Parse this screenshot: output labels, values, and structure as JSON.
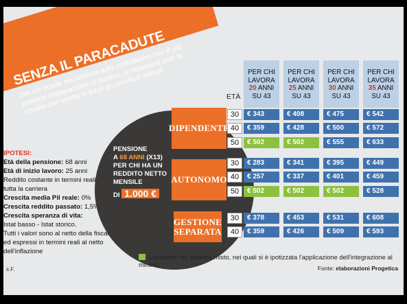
{
  "title": "SENZA IL PARACADUTE",
  "subtitle": "Per chi ricade nel sistema tutto contributivo non è più previsto l'integrazione al minimo, si incasserà solo la rendita che spetta in base ai contributi versati",
  "hypotheses": {
    "header": "IPOTESI:",
    "lines": [
      {
        "label": "Età della pensione:",
        "value": " 68 anni"
      },
      {
        "label": "Età di inizio lavoro:",
        "value": " 25 anni"
      },
      {
        "label": "",
        "value": "Reddito costante in termini reali per tutta la carriera"
      },
      {
        "label": "Crescita media Pil reale:",
        "value": " 0%"
      },
      {
        "label": "Crescita reddito passato:",
        "value": " 1,5%"
      },
      {
        "label": "Crescita speranza di vita:",
        "value": ""
      },
      {
        "label": "",
        "value": "Istat basso - Istat storico."
      },
      {
        "label": "",
        "value": "Tutti i valori sono al netto della fiscalità ed espressi in termini reali al netto dell'inflazione"
      }
    ]
  },
  "pension_box": {
    "line1": "PENSIONE",
    "line2_pre": "A ",
    "line2_hl": "68 ANNI",
    "line2_post": " (X13)",
    "line3": "PER CHI HA UN REDDITO NETTO MENSILE",
    "amount_pre": "DI ",
    "amount": "1.000 €"
  },
  "table": {
    "eta_header": "ETÀ",
    "columns": [
      {
        "pre": "PER CHI LAVORA",
        "years": "20",
        "post": "ANNI SU 43"
      },
      {
        "pre": "PER CHI LAVORA",
        "years": "25",
        "post": "ANNI SU 43"
      },
      {
        "pre": "PER CHI LAVORA",
        "years": "30",
        "post": "ANNI SU 43"
      },
      {
        "pre": "PER CHI LAVORA",
        "years": "35",
        "post": "ANNI SU 43"
      }
    ],
    "groups": [
      {
        "name": "DIPENDENTE",
        "rows": [
          {
            "age": "30",
            "values": [
              "€ 343",
              "€ 408",
              "€ 475",
              "€ 542"
            ],
            "misto": [
              false,
              false,
              false,
              false
            ]
          },
          {
            "age": "40",
            "values": [
              "€ 359",
              "€ 428",
              "€ 500",
              "€ 572"
            ],
            "misto": [
              false,
              false,
              false,
              false
            ]
          },
          {
            "age": "50",
            "values": [
              "€ 502",
              "€ 502",
              "€ 555",
              "€ 633"
            ],
            "misto": [
              true,
              true,
              false,
              false
            ]
          }
        ]
      },
      {
        "name": "AUTONOMO",
        "rows": [
          {
            "age": "30",
            "values": [
              "€ 283",
              "€ 341",
              "€ 395",
              "€ 449"
            ],
            "misto": [
              false,
              false,
              false,
              false
            ]
          },
          {
            "age": "40",
            "values": [
              "€ 257",
              "€ 337",
              "€ 401",
              "€ 459"
            ],
            "misto": [
              false,
              false,
              false,
              false
            ]
          },
          {
            "age": "50",
            "values": [
              "€ 502",
              "€ 502",
              "€ 502",
              "€ 528"
            ],
            "misto": [
              true,
              true,
              true,
              false
            ]
          }
        ]
      },
      {
        "name": "GESTIONE SEPARATA",
        "rows": [
          {
            "age": "30",
            "values": [
              "€ 378",
              "€ 453",
              "€ 531",
              "€ 608"
            ],
            "misto": [
              false,
              false,
              false,
              false
            ]
          },
          {
            "age": "40",
            "values": [
              "€ 359",
              "€ 426",
              "€ 509",
              "€ 593"
            ],
            "misto": [
              false,
              false,
              false,
              false
            ]
          }
        ]
      }
    ]
  },
  "legend": "Lavoratori nel sistema misto, nei quali si è ipotizzata l'applicazione dell'integrazione al minimo",
  "source_label": "Fonte: ",
  "source_value": "elaborazioni Progetica",
  "credit": "s.F.",
  "colors": {
    "orange": "#ec6f27",
    "blue": "#3f72ad",
    "green": "#8dc03f",
    "header_blue": "#bcd0e6",
    "dark": "#3a3937",
    "red": "#d6311f"
  }
}
